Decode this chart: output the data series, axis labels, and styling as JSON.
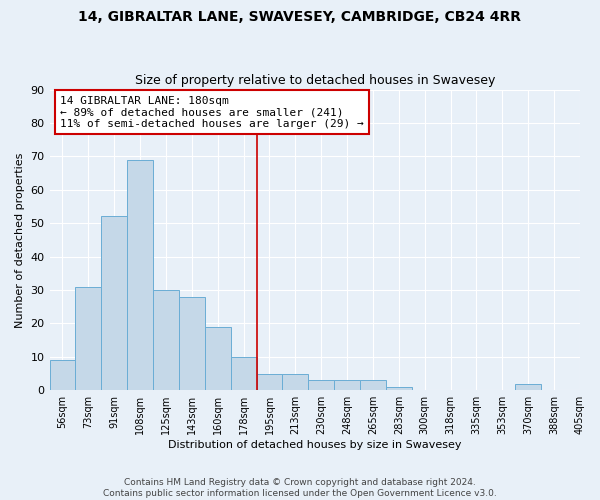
{
  "title1": "14, GIBRALTAR LANE, SWAVESEY, CAMBRIDGE, CB24 4RR",
  "title2": "Size of property relative to detached houses in Swavesey",
  "xlabel": "Distribution of detached houses by size in Swavesey",
  "ylabel": "Number of detached properties",
  "bin_labels": [
    "56sqm",
    "73sqm",
    "91sqm",
    "108sqm",
    "125sqm",
    "143sqm",
    "160sqm",
    "178sqm",
    "195sqm",
    "213sqm",
    "230sqm",
    "248sqm",
    "265sqm",
    "283sqm",
    "300sqm",
    "318sqm",
    "335sqm",
    "353sqm",
    "370sqm",
    "388sqm",
    "405sqm"
  ],
  "bar_values": [
    9,
    31,
    52,
    69,
    30,
    28,
    19,
    10,
    5,
    5,
    3,
    3,
    3,
    1,
    0,
    0,
    0,
    0,
    2,
    0
  ],
  "bar_color": "#c5d8e8",
  "bar_edge_color": "#6aadd5",
  "red_line_bar_index": 7,
  "annotation_title": "14 GIBRALTAR LANE: 180sqm",
  "annotation_line1": "← 89% of detached houses are smaller (241)",
  "annotation_line2": "11% of semi-detached houses are larger (29) →",
  "annotation_box_color": "#ffffff",
  "annotation_box_edge": "#cc0000",
  "red_line_color": "#cc0000",
  "ylim": [
    0,
    90
  ],
  "yticks": [
    0,
    10,
    20,
    30,
    40,
    50,
    60,
    70,
    80,
    90
  ],
  "title1_fontsize": 10,
  "title2_fontsize": 9,
  "xlabel_fontsize": 8,
  "ylabel_fontsize": 8,
  "xtick_fontsize": 7,
  "ytick_fontsize": 8,
  "annotation_fontsize": 8,
  "footer": "Contains HM Land Registry data © Crown copyright and database right 2024.\nContains public sector information licensed under the Open Government Licence v3.0.",
  "background_color": "#e8f0f8",
  "grid_color": "#ffffff"
}
